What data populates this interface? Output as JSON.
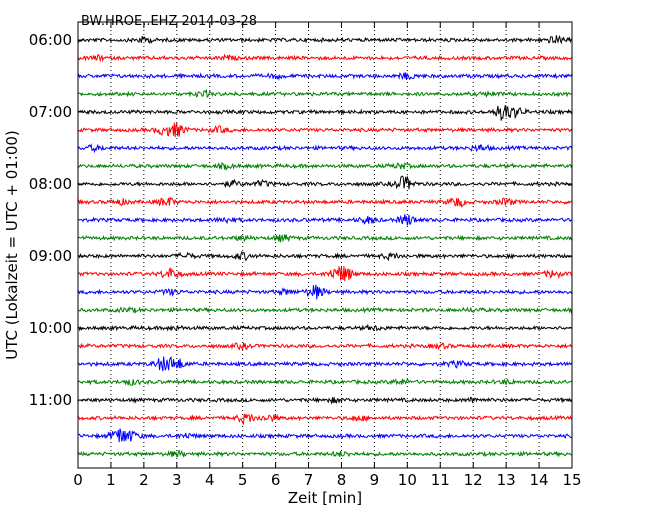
{
  "chart_data": {
    "type": "line",
    "title": "BW.HROE..EHZ 2014-03-28",
    "xlabel": "Zeit  [min]",
    "ylabel": "UTC (Lokalzeit = UTC + 01:00)",
    "xlim": [
      0,
      15
    ],
    "x_ticks": [
      0,
      1,
      2,
      3,
      4,
      5,
      6,
      7,
      8,
      9,
      10,
      11,
      12,
      13,
      14,
      15
    ],
    "x_tick_labels": [
      "0",
      "1",
      "2",
      "3",
      "4",
      "5",
      "6",
      "7",
      "8",
      "9",
      "10",
      "11",
      "12",
      "13",
      "14",
      "15"
    ],
    "y_tick_labels": [
      "06:00",
      "07:00",
      "08:00",
      "09:00",
      "10:00",
      "11:00"
    ],
    "y_tick_rows": [
      0,
      4,
      8,
      12,
      16,
      20
    ],
    "row_count": 24,
    "vertical_grid": "dotted",
    "color_cycle": [
      "#000000",
      "#ff0000",
      "#0000ff",
      "#008000"
    ],
    "series": [
      {
        "start": "06:00",
        "events": [
          [
            2.0,
            0.35
          ],
          [
            14.5,
            0.45
          ]
        ]
      },
      {
        "start": "06:15",
        "events": [
          [
            0.6,
            0.25
          ],
          [
            4.5,
            0.2
          ]
        ]
      },
      {
        "start": "06:30",
        "events": [
          [
            10.0,
            0.35
          ],
          [
            6.0,
            0.2
          ]
        ]
      },
      {
        "start": "06:45",
        "events": [
          [
            3.8,
            0.3
          ],
          [
            12.5,
            0.2
          ]
        ]
      },
      {
        "start": "07:00",
        "events": [
          [
            12.9,
            1.0
          ],
          [
            13.3,
            0.5
          ]
        ]
      },
      {
        "start": "07:15",
        "events": [
          [
            3.0,
            0.85
          ],
          [
            2.6,
            0.5
          ],
          [
            4.3,
            0.35
          ]
        ]
      },
      {
        "start": "07:30",
        "events": [
          [
            0.5,
            0.3
          ],
          [
            12.2,
            0.35
          ]
        ]
      },
      {
        "start": "07:45",
        "events": [
          [
            4.5,
            0.25
          ],
          [
            9.8,
            0.3
          ]
        ]
      },
      {
        "start": "08:00",
        "events": [
          [
            9.9,
            0.95
          ],
          [
            5.6,
            0.3
          ],
          [
            4.7,
            0.3
          ]
        ]
      },
      {
        "start": "08:15",
        "events": [
          [
            2.7,
            0.55
          ],
          [
            11.5,
            0.6
          ],
          [
            13.0,
            0.4
          ],
          [
            1.3,
            0.3
          ]
        ]
      },
      {
        "start": "08:30",
        "events": [
          [
            10.0,
            0.7
          ],
          [
            8.8,
            0.4
          ],
          [
            4.5,
            0.3
          ]
        ]
      },
      {
        "start": "08:45",
        "events": [
          [
            6.2,
            0.35
          ],
          [
            5.0,
            0.25
          ]
        ]
      },
      {
        "start": "09:00",
        "events": [
          [
            5.0,
            0.4
          ],
          [
            3.3,
            0.3
          ],
          [
            9.5,
            0.3
          ]
        ]
      },
      {
        "start": "09:15",
        "events": [
          [
            8.1,
            0.9
          ],
          [
            2.8,
            0.7
          ],
          [
            7.8,
            0.5
          ],
          [
            14.4,
            0.4
          ]
        ]
      },
      {
        "start": "09:30",
        "events": [
          [
            7.2,
            0.9
          ],
          [
            2.8,
            0.3
          ],
          [
            6.3,
            0.3
          ]
        ]
      },
      {
        "start": "09:45",
        "events": [
          [
            1.5,
            0.2
          ],
          [
            12.0,
            0.2
          ]
        ]
      },
      {
        "start": "10:00",
        "events": [
          [
            3.0,
            0.2
          ],
          [
            9.0,
            0.2
          ]
        ]
      },
      {
        "start": "10:15",
        "events": [
          [
            5.0,
            0.3
          ],
          [
            11.0,
            0.25
          ]
        ]
      },
      {
        "start": "10:30",
        "events": [
          [
            2.6,
            0.9
          ],
          [
            3.0,
            0.7
          ],
          [
            11.5,
            0.3
          ]
        ]
      },
      {
        "start": "10:45",
        "events": [
          [
            1.6,
            0.3
          ],
          [
            9.8,
            0.3
          ],
          [
            13.0,
            0.2
          ]
        ]
      },
      {
        "start": "11:00",
        "events": [
          [
            7.8,
            0.25
          ],
          [
            12.0,
            0.2
          ]
        ]
      },
      {
        "start": "11:15",
        "events": [
          [
            5.1,
            0.6
          ],
          [
            5.8,
            0.4
          ],
          [
            8.5,
            0.3
          ]
        ]
      },
      {
        "start": "11:30",
        "events": [
          [
            1.25,
            1.0
          ],
          [
            1.6,
            0.5
          ],
          [
            3.3,
            0.25
          ]
        ]
      },
      {
        "start": "11:45",
        "events": [
          [
            3.0,
            0.3
          ],
          [
            8.0,
            0.25
          ]
        ]
      }
    ]
  }
}
